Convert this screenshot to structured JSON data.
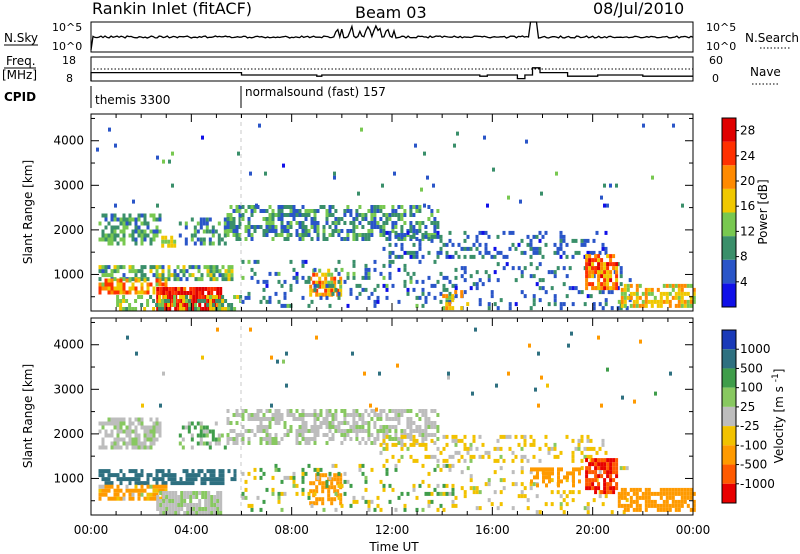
{
  "header": {
    "title": "Rankin Inlet (fitACF)",
    "beam": "Beam 03",
    "date": "08/Jul/2010"
  },
  "noise_panel": {
    "left_label": "N.Sky",
    "right_label": "N.Search",
    "left_ticks": [
      "10^5",
      "10^0"
    ],
    "right_ticks": [
      "10^5",
      "10^0"
    ]
  },
  "freq_panel": {
    "left_label_line1": "Freq.",
    "left_label_line2": "[MHz]",
    "right_label": "Nave",
    "left_ticks": [
      "18",
      "8"
    ],
    "right_ticks": [
      "60",
      "0"
    ]
  },
  "cpid": {
    "label": "CPID",
    "programs": [
      {
        "name": "themis 3300",
        "start_hour": 0
      },
      {
        "name": "normalsound (fast) 157",
        "start_hour": 6
      }
    ]
  },
  "x_axis": {
    "label": "Time UT",
    "ticks": [
      "00:00",
      "04:00",
      "08:00",
      "12:00",
      "16:00",
      "20:00",
      "00:00"
    ],
    "range_hours": [
      0,
      24
    ]
  },
  "chart_data": [
    {
      "type": "heatmap",
      "panel": "power",
      "xlabel": "Time UT",
      "ylabel": "Slant Range [km]",
      "yticks": [
        "1000",
        "2000",
        "3000",
        "4000"
      ],
      "ylim": [
        180,
        4600
      ],
      "colorbar_label": "Power [dB]",
      "colorbar_ticks": [
        "4",
        "8",
        "12",
        "16",
        "20",
        "24",
        "28"
      ],
      "colorbar_range": [
        0,
        30
      ],
      "colors": [
        "#1010e8",
        "#2a55c8",
        "#3a8f6a",
        "#78c850",
        "#f0c800",
        "#ff8a00",
        "#ff3000",
        "#e00000"
      ],
      "scatter_regions": [
        {
          "t": [
            0.3,
            2.7
          ],
          "r": [
            1650,
            2350
          ],
          "p": [
            6,
            15
          ],
          "d": 0.62
        },
        {
          "t": [
            2.8,
            3.3
          ],
          "r": [
            1600,
            1800
          ],
          "p": [
            14,
            20
          ],
          "d": 0.7
        },
        {
          "t": [
            3.5,
            5.4
          ],
          "r": [
            1650,
            2250
          ],
          "p": [
            5,
            14
          ],
          "d": 0.45
        },
        {
          "t": [
            5.4,
            13.8
          ],
          "r": [
            1750,
            2500
          ],
          "p": [
            4,
            14
          ],
          "d": 0.55
        },
        {
          "t": [
            11.5,
            20.5
          ],
          "r": [
            1350,
            1950
          ],
          "p": [
            3,
            10
          ],
          "d": 0.3
        },
        {
          "t": [
            0.3,
            5.8
          ],
          "r": [
            850,
            1150
          ],
          "p": [
            6,
            16
          ],
          "d": 0.7
        },
        {
          "t": [
            0.3,
            3.0
          ],
          "r": [
            550,
            850
          ],
          "p": [
            14,
            26
          ],
          "d": 0.75
        },
        {
          "t": [
            2.6,
            5.2
          ],
          "r": [
            180,
            650
          ],
          "p": [
            22,
            30
          ],
          "d": 0.95
        },
        {
          "t": [
            1.0,
            6.0
          ],
          "r": [
            180,
            500
          ],
          "p": [
            8,
            18
          ],
          "d": 0.5
        },
        {
          "t": [
            8.7,
            10.0
          ],
          "r": [
            500,
            1100
          ],
          "p": [
            14,
            24
          ],
          "d": 0.65
        },
        {
          "t": [
            6.0,
            14.5
          ],
          "r": [
            250,
            1250
          ],
          "p": [
            3,
            12
          ],
          "d": 0.18
        },
        {
          "t": [
            14.5,
            21.5
          ],
          "r": [
            200,
            1200
          ],
          "p": [
            3,
            10
          ],
          "d": 0.14
        },
        {
          "t": [
            19.7,
            21.0
          ],
          "r": [
            650,
            1400
          ],
          "p": [
            16,
            28
          ],
          "d": 0.8
        },
        {
          "t": [
            21.0,
            24.0
          ],
          "r": [
            250,
            700
          ],
          "p": [
            12,
            22
          ],
          "d": 0.6
        },
        {
          "t": [
            0.2,
            23.9
          ],
          "r": [
            2500,
            4300
          ],
          "p": [
            3,
            12
          ],
          "d": 0.012
        },
        {
          "t": [
            14.0,
            15.0
          ],
          "r": [
            200,
            600
          ],
          "p": [
            14,
            22
          ],
          "d": 0.4
        }
      ]
    },
    {
      "type": "heatmap",
      "panel": "velocity",
      "xlabel": "Time UT",
      "ylabel": "Slant Range [km]",
      "yticks": [
        "1000",
        "2000",
        "3000",
        "4000"
      ],
      "ylim": [
        180,
        4600
      ],
      "colorbar_label": "Velocity [m s^-1]",
      "colorbar_ticks": [
        "1000",
        "500",
        "100",
        "25",
        "-25",
        "-100",
        "-500",
        "-1000"
      ],
      "colors": [
        "#1a3ab8",
        "#2e7080",
        "#3f9d4a",
        "#88c860",
        "#bdbdbd",
        "#f2c200",
        "#ff9a00",
        "#ff5a00",
        "#e80000"
      ],
      "scatter_regions": [
        {
          "t": [
            0.3,
            2.7
          ],
          "r": [
            1650,
            2350
          ],
          "v": [
            -25,
            25
          ],
          "d": 0.62
        },
        {
          "t": [
            3.5,
            5.4
          ],
          "r": [
            1650,
            2250
          ],
          "v": [
            -25,
            100
          ],
          "d": 0.45
        },
        {
          "t": [
            5.4,
            13.8
          ],
          "r": [
            1750,
            2500
          ],
          "v": [
            -25,
            25
          ],
          "d": 0.55
        },
        {
          "t": [
            11.5,
            20.5
          ],
          "r": [
            1350,
            1950
          ],
          "v": [
            -100,
            25
          ],
          "d": 0.3
        },
        {
          "t": [
            0.3,
            5.8
          ],
          "r": [
            850,
            1200
          ],
          "v": [
            100,
            500
          ],
          "d": 0.6
        },
        {
          "t": [
            0.3,
            3.0
          ],
          "r": [
            500,
            850
          ],
          "v": [
            -500,
            25
          ],
          "d": 0.7
        },
        {
          "t": [
            2.6,
            5.2
          ],
          "r": [
            180,
            650
          ],
          "v": [
            -25,
            25
          ],
          "d": 0.9
        },
        {
          "t": [
            8.7,
            10.0
          ],
          "r": [
            400,
            1100
          ],
          "v": [
            -500,
            -100
          ],
          "d": 0.6
        },
        {
          "t": [
            6.0,
            14.5
          ],
          "r": [
            250,
            1250
          ],
          "v": [
            -100,
            100
          ],
          "d": 0.15
        },
        {
          "t": [
            14.5,
            21.5
          ],
          "r": [
            200,
            1200
          ],
          "v": [
            -100,
            25
          ],
          "d": 0.14
        },
        {
          "t": [
            17.5,
            19.5
          ],
          "r": [
            800,
            1200
          ],
          "v": [
            -500,
            -100
          ],
          "d": 0.5
        },
        {
          "t": [
            19.7,
            21.0
          ],
          "r": [
            650,
            1400
          ],
          "v": [
            -1000,
            -500
          ],
          "d": 0.8
        },
        {
          "t": [
            21.0,
            24.0
          ],
          "r": [
            250,
            700
          ],
          "v": [
            -500,
            -100
          ],
          "d": 0.7
        },
        {
          "t": [
            0.2,
            23.9
          ],
          "r": [
            2500,
            4300
          ],
          "v": [
            -500,
            500
          ],
          "d": 0.012
        }
      ]
    }
  ]
}
